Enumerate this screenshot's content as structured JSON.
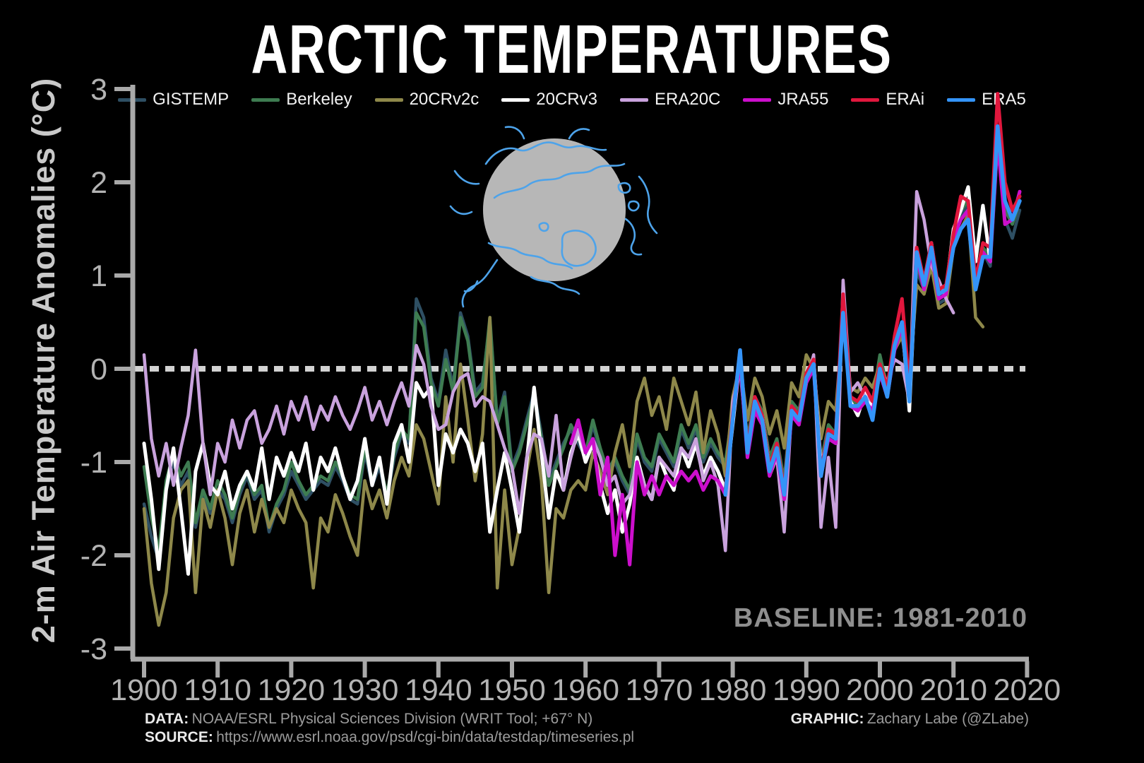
{
  "title": "ARCTIC TEMPERATURES",
  "ylabel": "2-m Air Temperature Anomalies (°C)",
  "baseline_note": "BASELINE: 1981-2010",
  "footer": {
    "data_label": "DATA:",
    "data_text": "NOAA/ESRL Physical Sciences Division (WRIT Tool; +67° N)",
    "source_label": "SOURCE:",
    "source_text": "https://www.esrl.noaa.gov/psd/cgi-bin/data/testdap/timeseries.pl",
    "graphic_label": "GRAPHIC:",
    "graphic_text": "Zachary Labe (@ZLabe)"
  },
  "colors": {
    "background": "#000000",
    "axis": "#a9a9a9",
    "tick_label": "#b3b3b3",
    "zero_line": "#d2d2d2",
    "baseline_text": "#8f8f8f",
    "legend_text": "#f2f2f2",
    "map_land": "#b7b7b7",
    "map_coast": "#4da3ea"
  },
  "chart_data": {
    "type": "line",
    "title": "ARCTIC TEMPERATURES",
    "xlabel": "",
    "ylabel": "2-m Air Temperature Anomalies (°C)",
    "xlim": [
      1898,
      2021.5
    ],
    "ylim": [
      -3.05,
      3.05
    ],
    "x_ticks": [
      1900,
      1910,
      1920,
      1930,
      1940,
      1950,
      1960,
      1970,
      1980,
      1990,
      2000,
      2010,
      2020
    ],
    "y_ticks": [
      3,
      2,
      1,
      0,
      -1,
      -2,
      -3
    ],
    "grid": false,
    "zero_line_dashed": true,
    "legend_position": "top",
    "baseline_period": "1981-2010",
    "series": [
      {
        "name": "GISTEMP",
        "color": "#2e4f63",
        "start_year": 1900,
        "values": [
          -1.45,
          -1.8,
          -2.05,
          -1.3,
          -1.0,
          -1.25,
          -1.1,
          -1.7,
          -1.35,
          -1.55,
          -1.3,
          -1.4,
          -1.65,
          -1.35,
          -1.15,
          -1.4,
          -1.3,
          -1.75,
          -1.5,
          -1.35,
          -1.1,
          -1.25,
          -1.4,
          -1.3,
          -1.2,
          -1.25,
          -1.05,
          -1.2,
          -1.4,
          -1.45,
          -0.9,
          -1.25,
          -1.05,
          -1.4,
          -0.95,
          -0.7,
          -0.8,
          0.75,
          0.55,
          -0.1,
          -0.35,
          0.2,
          -0.2,
          0.6,
          0.35,
          -0.25,
          -0.15,
          0.5,
          -0.55,
          -0.25,
          -1.05,
          -0.85,
          -0.55,
          -0.25,
          -0.7,
          -1.2,
          -1.0,
          -0.8,
          -0.65,
          -0.8,
          -0.95,
          -0.6,
          -0.9,
          -1.15,
          -1.0,
          -1.2,
          -1.35,
          -0.75,
          -1.0,
          -1.1,
          -0.75,
          -0.9,
          -1.05,
          -0.65,
          -0.85,
          -0.65,
          -1.0,
          -0.8,
          -0.95,
          -1.05,
          -0.5,
          0.15,
          -0.8,
          -0.35,
          -0.5,
          -1.0,
          -0.8,
          -1.25,
          -0.4,
          -0.5,
          -0.1,
          0.05,
          -1.05,
          -0.65,
          -0.75,
          0.7,
          -0.35,
          -0.45,
          -0.25,
          -0.4,
          0.1,
          -0.25,
          0.25,
          0.4,
          -0.3,
          1.05,
          0.85,
          1.2,
          0.7,
          0.75,
          1.35,
          1.65,
          1.75,
          0.85,
          1.25,
          1.1,
          2.4,
          1.6,
          1.4,
          1.7
        ]
      },
      {
        "name": "Berkeley",
        "color": "#3e7c51",
        "start_year": 1900,
        "values": [
          -1.05,
          -1.6,
          -1.95,
          -1.2,
          -0.9,
          -1.15,
          -1.0,
          -1.65,
          -1.3,
          -1.5,
          -1.2,
          -1.35,
          -1.6,
          -1.3,
          -1.1,
          -1.35,
          -1.25,
          -1.7,
          -1.45,
          -1.3,
          -1.0,
          -1.2,
          -1.35,
          -1.25,
          -1.15,
          -1.2,
          -1.0,
          -1.15,
          -1.35,
          -1.4,
          -0.85,
          -1.2,
          -1.0,
          -1.35,
          -0.9,
          -0.65,
          -0.75,
          0.6,
          0.45,
          -0.15,
          -0.4,
          0.1,
          -0.25,
          0.55,
          0.3,
          -0.3,
          -0.2,
          0.55,
          -0.6,
          -0.3,
          -1.1,
          -0.9,
          -0.6,
          -0.3,
          -0.75,
          -1.25,
          -1.05,
          -0.85,
          -0.6,
          -0.75,
          -0.9,
          -0.55,
          -0.85,
          -1.1,
          -0.95,
          -1.15,
          -1.3,
          -0.7,
          -0.95,
          -1.05,
          -0.7,
          -0.85,
          -1.0,
          -0.6,
          -0.8,
          -0.6,
          -0.95,
          -0.75,
          -0.9,
          -1.0,
          -0.45,
          0.1,
          -0.75,
          -0.3,
          -0.45,
          -0.95,
          -0.75,
          -1.2,
          -0.35,
          -0.45,
          -0.05,
          0.1,
          -1.0,
          -0.6,
          -0.7,
          0.65,
          -0.3,
          -0.4,
          -0.2,
          -0.35,
          0.15,
          -0.2,
          0.3,
          0.45,
          -0.25,
          1.1,
          0.9,
          1.25,
          0.75,
          0.8,
          1.4,
          1.7,
          1.8,
          0.9,
          1.3,
          1.2,
          2.5,
          1.7,
          1.55,
          1.8
        ]
      },
      {
        "name": "20CRv2c",
        "color": "#8e884a",
        "start_year": 1900,
        "values": [
          -1.5,
          -2.3,
          -2.75,
          -2.4,
          -1.6,
          -1.3,
          -1.2,
          -2.4,
          -1.4,
          -1.7,
          -1.3,
          -1.6,
          -2.1,
          -1.55,
          -1.3,
          -1.75,
          -1.4,
          -1.7,
          -1.5,
          -1.65,
          -1.3,
          -1.5,
          -1.65,
          -2.35,
          -1.6,
          -1.75,
          -1.35,
          -1.55,
          -1.8,
          -2.0,
          -1.2,
          -1.5,
          -1.3,
          -1.6,
          -1.2,
          -0.95,
          -1.15,
          -0.6,
          -0.75,
          -1.1,
          -1.45,
          -0.3,
          -1.0,
          0.05,
          -0.55,
          -1.2,
          -0.7,
          0.55,
          -2.35,
          -1.3,
          -2.1,
          -1.7,
          -1.1,
          -0.65,
          -1.2,
          -2.4,
          -1.5,
          -1.6,
          -1.3,
          -1.2,
          -1.3,
          -0.9,
          -1.1,
          -1.35,
          -0.9,
          -0.6,
          -1.05,
          -0.35,
          -0.1,
          -0.5,
          -0.3,
          -0.65,
          -0.1,
          -0.35,
          -0.6,
          -0.25,
          -0.9,
          -0.45,
          -0.7,
          -1.15,
          -0.3,
          0.05,
          -0.55,
          -0.1,
          -0.3,
          -0.7,
          -0.45,
          -0.85,
          -0.15,
          -0.3,
          0.15,
          0.0,
          -0.75,
          -0.35,
          -0.45,
          0.55,
          -0.2,
          -0.25,
          -0.1,
          -0.2,
          0.05,
          -0.15,
          0.2,
          0.35,
          -0.15,
          0.9,
          0.8,
          1.1,
          0.65,
          0.7,
          1.3,
          1.5,
          1.65,
          0.55,
          0.45
        ]
      },
      {
        "name": "20CRv3",
        "color": "#ffffff",
        "start_year": 1900,
        "values": [
          -0.8,
          -1.4,
          -2.15,
          -1.3,
          -0.85,
          -1.5,
          -2.2,
          -1.1,
          -0.8,
          -1.25,
          -1.35,
          -1.1,
          -1.5,
          -1.25,
          -1.1,
          -1.3,
          -0.85,
          -1.4,
          -0.95,
          -1.15,
          -0.9,
          -1.1,
          -0.8,
          -1.3,
          -0.95,
          -1.1,
          -0.85,
          -1.15,
          -1.4,
          -1.2,
          -0.75,
          -1.25,
          -0.95,
          -1.45,
          -0.8,
          -0.6,
          -1.0,
          -0.15,
          -0.3,
          -0.2,
          -1.25,
          -0.7,
          -0.9,
          -0.65,
          -0.8,
          -1.1,
          -0.8,
          -1.75,
          -1.3,
          -0.9,
          -1.3,
          -1.75,
          -1.0,
          -0.2,
          -0.9,
          -1.6,
          -1.1,
          -1.3,
          -0.9,
          -0.7,
          -1.0,
          -0.8,
          -1.25,
          -1.55,
          -1.3,
          -1.75,
          -1.45,
          -0.95,
          -1.25,
          -1.4,
          -0.95,
          -1.15,
          -1.3,
          -0.85,
          -1.05,
          -0.8,
          -1.15,
          -0.95,
          -1.1,
          -1.3,
          -0.6,
          0.1,
          -0.9,
          -0.35,
          -0.5,
          -1.05,
          -0.85,
          -1.35,
          -0.45,
          -0.55,
          -0.15,
          0.1,
          -1.05,
          -0.7,
          -0.75,
          0.7,
          -0.35,
          -0.5,
          -0.25,
          -0.4,
          -0.05,
          -0.25,
          0.25,
          0.5,
          -0.45,
          1.25,
          0.9,
          1.35,
          0.8,
          0.85,
          1.5,
          1.7,
          1.95,
          1.15,
          1.75,
          1.15
        ]
      },
      {
        "name": "ERA20C",
        "color": "#c9a2dd",
        "start_year": 1900,
        "values": [
          0.15,
          -0.75,
          -1.15,
          -0.8,
          -1.25,
          -0.85,
          -0.5,
          0.2,
          -0.8,
          -1.35,
          -0.8,
          -1.0,
          -0.55,
          -0.85,
          -0.55,
          -0.45,
          -0.8,
          -0.65,
          -0.4,
          -0.7,
          -0.35,
          -0.55,
          -0.3,
          -0.65,
          -0.4,
          -0.55,
          -0.3,
          -0.5,
          -0.65,
          -0.45,
          -0.2,
          -0.55,
          -0.35,
          -0.6,
          -0.35,
          -0.15,
          -0.4,
          0.25,
          0.05,
          -0.4,
          -0.65,
          -0.6,
          -0.25,
          -0.1,
          -0.05,
          -0.4,
          -0.3,
          -0.35,
          -0.6,
          -0.85,
          -1.05,
          -1.55,
          -0.95,
          -0.7,
          -0.75,
          -1.15,
          -0.5,
          -1.3,
          -0.95,
          -0.65,
          -0.9,
          -0.75,
          -0.95,
          -1.25,
          -1.15,
          -1.45,
          -1.35,
          -1.0,
          -1.25,
          -1.4,
          -0.95,
          -1.05,
          -1.15,
          -0.85,
          -0.95,
          -0.75,
          -1.2,
          -1.0,
          -1.25,
          -1.95,
          -0.35,
          0.0,
          -0.85,
          -0.45,
          -0.6,
          -1.15,
          -0.95,
          -1.75,
          -0.45,
          -0.55,
          -0.15,
          0.15,
          -1.7,
          -0.95,
          -1.7,
          0.95,
          -0.25,
          -0.15,
          -0.3,
          -0.35,
          0.0,
          -0.15,
          0.1,
          0.05,
          -0.35,
          1.9,
          1.6,
          1.1,
          0.95,
          0.75,
          0.6
        ]
      },
      {
        "name": "JRA55",
        "color": "#cc0fcc",
        "start_year": 1958,
        "values": [
          -0.8,
          -0.55,
          -0.9,
          -0.75,
          -1.35,
          -0.95,
          -2.0,
          -1.35,
          -2.1,
          -1.0,
          -1.35,
          -1.15,
          -1.35,
          -1.15,
          -1.25,
          -1.1,
          -1.2,
          -1.1,
          -1.3,
          -1.15,
          -1.2,
          -1.35,
          -0.55,
          0.1,
          -0.95,
          -0.45,
          -0.6,
          -1.15,
          -0.9,
          -1.4,
          -0.5,
          -0.6,
          -0.15,
          0.0,
          -1.15,
          -0.75,
          -0.8,
          0.65,
          -0.4,
          -0.45,
          -0.35,
          -0.45,
          -0.05,
          -0.3,
          0.2,
          0.45,
          -0.3,
          1.2,
          0.85,
          1.25,
          0.75,
          0.8,
          1.4,
          1.6,
          1.7,
          0.9,
          1.25,
          1.15,
          2.45,
          1.55,
          1.6,
          1.9
        ]
      },
      {
        "name": "ERAi",
        "color": "#e0173d",
        "start_year": 1979,
        "values": [
          -1.3,
          -0.5,
          0.2,
          -0.85,
          -0.3,
          -0.5,
          -1.05,
          -0.8,
          -1.3,
          -0.4,
          -0.5,
          -0.05,
          0.1,
          -1.1,
          -0.65,
          -0.7,
          0.8,
          -0.3,
          -0.35,
          -0.2,
          -0.35,
          0.05,
          -0.2,
          0.35,
          0.75,
          -0.2,
          1.3,
          0.95,
          1.35,
          0.85,
          0.9,
          1.45,
          1.85,
          1.8,
          0.95,
          1.35,
          1.3,
          2.95,
          2.0,
          1.7,
          1.85
        ]
      },
      {
        "name": "ERA5",
        "color": "#3494f8",
        "start_year": 1979,
        "values": [
          -1.35,
          -0.55,
          0.2,
          -0.9,
          -0.35,
          -0.55,
          -1.1,
          -0.85,
          -1.35,
          -0.45,
          -0.55,
          -0.1,
          0.05,
          -1.15,
          -0.7,
          -0.75,
          0.6,
          -0.4,
          -0.4,
          -0.3,
          -0.55,
          0.0,
          -0.3,
          0.25,
          0.5,
          -0.35,
          1.25,
          0.9,
          1.3,
          0.8,
          0.85,
          1.3,
          1.5,
          1.6,
          0.85,
          1.2,
          1.2,
          2.6,
          1.8,
          1.6,
          1.8
        ]
      }
    ]
  }
}
